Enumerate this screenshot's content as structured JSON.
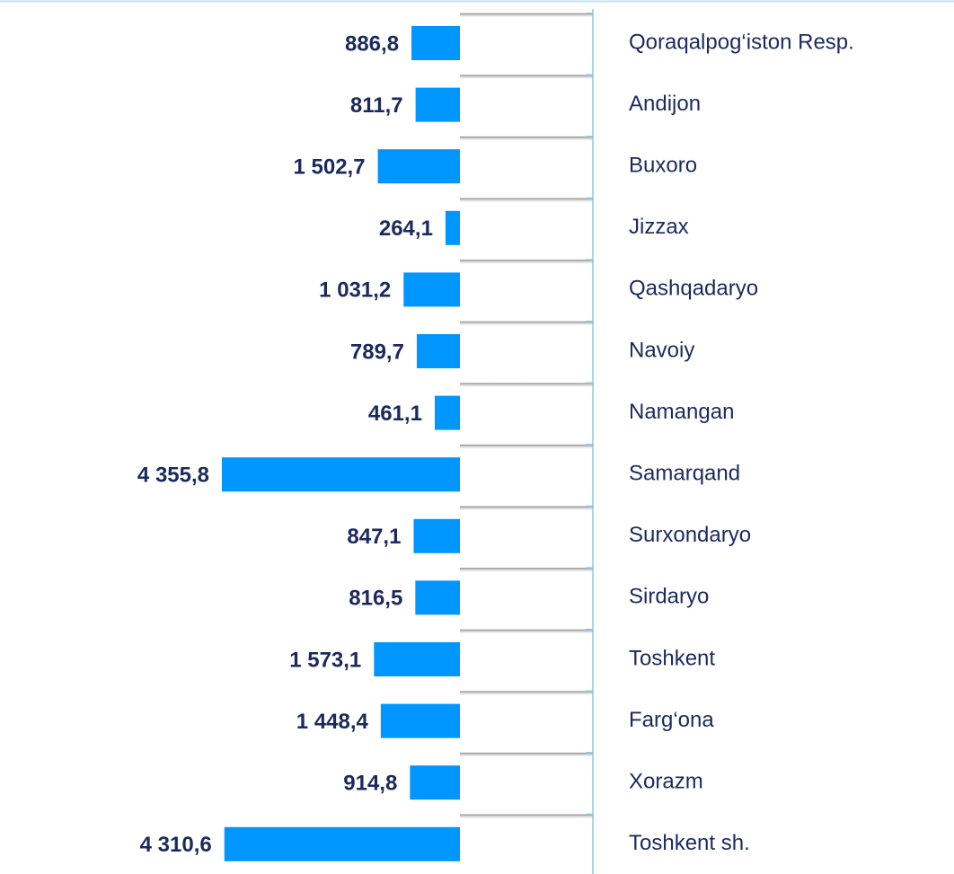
{
  "chart_data": {
    "type": "barh",
    "categories": [
      "Qoraqalpog‘iston Resp.",
      "Andijon",
      "Buxoro",
      "Jizzax",
      "Qashqadaryo",
      "Navoiy",
      "Namangan",
      "Samarqand",
      "Surxondaryo",
      "Sirdaryo",
      "Toshkent",
      "Farg‘ona",
      "Xorazm",
      "Toshkent sh."
    ],
    "values": [
      886.8,
      811.7,
      1502.7,
      264.1,
      1031.2,
      789.7,
      461.1,
      4355.8,
      847.1,
      816.5,
      1573.1,
      1448.4,
      914.8,
      4310.6
    ],
    "value_labels": [
      "886,8",
      "811,7",
      "1 502,7",
      "264,1",
      "1 031,2",
      "789,7",
      "461,1",
      "4 355,8",
      "847,1",
      "816,5",
      "1 573,1",
      "1 448,4",
      "914,8",
      "4 310,6"
    ],
    "color": "#0096ff"
  }
}
